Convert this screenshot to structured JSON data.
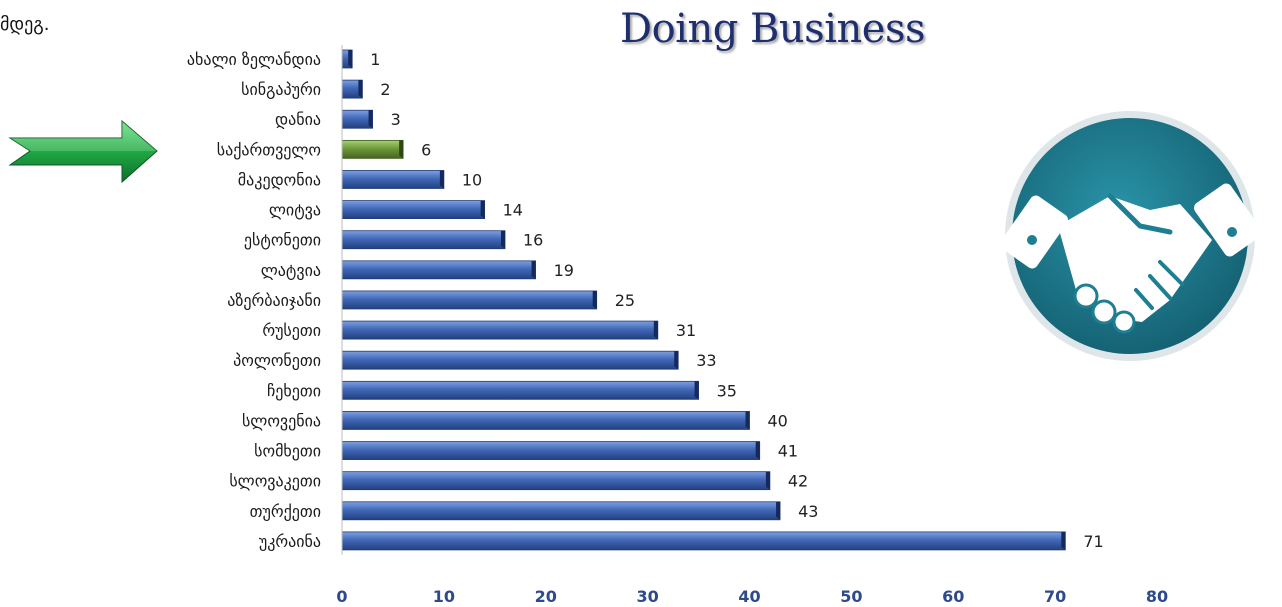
{
  "page": {
    "top_text": "მდეგ.",
    "title": "Doing Business"
  },
  "colors": {
    "bar": "#3f66b8",
    "bar_highlight": "#6f9a3a",
    "arrow": "#2aa84a",
    "tick": "#2e4a8c",
    "badge": "#1e7f93"
  },
  "icons": {
    "arrow": "right-arrow-icon",
    "badge": "handshake-icon"
  },
  "chart_data": {
    "type": "bar",
    "orientation": "horizontal",
    "title": "Doing Business",
    "categories": [
      "ახალი ზელანდია",
      "სინგაპური",
      "დანია",
      "საქართველო",
      "მაკედონია",
      "ლიტვა",
      "ესტონეთი",
      "ლატვია",
      "აზერბაიჯანი",
      "რუსეთი",
      "პოლონეთი",
      "ჩეხეთი",
      "სლოვენია",
      "სომხეთი",
      "სლოვაკეთი",
      "თურქეთი",
      "უკრაინა"
    ],
    "values": [
      1,
      2,
      3,
      6,
      10,
      14,
      16,
      19,
      25,
      31,
      33,
      35,
      40,
      41,
      42,
      43,
      71
    ],
    "highlight": "საქართველო",
    "xlim": [
      0,
      80
    ],
    "xticks": [
      0,
      10,
      20,
      30,
      40,
      50,
      60,
      70,
      80
    ],
    "grid": false,
    "legend": "none",
    "data_labels": true
  }
}
